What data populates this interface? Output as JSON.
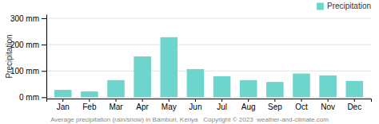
{
  "chart_data": {
    "type": "bar",
    "categories": [
      "Jan",
      "Feb",
      "Mar",
      "Apr",
      "May",
      "Jun",
      "Jul",
      "Aug",
      "Sep",
      "Oct",
      "Nov",
      "Dec"
    ],
    "series": [
      {
        "name": "Precipitation",
        "color": "#6dd5cb",
        "values": [
          28,
          22,
          65,
          155,
          228,
          107,
          80,
          65,
          58,
          90,
          83,
          62
        ]
      }
    ],
    "ylabel": "Precipitation",
    "ylim": [
      -5,
      315
    ],
    "yticks": [
      {
        "value": 0,
        "label": "0 mm"
      },
      {
        "value": 100,
        "label": "100 mm"
      },
      {
        "value": 200,
        "label": "200 mm"
      },
      {
        "value": 300,
        "label": "300 mm"
      }
    ],
    "grid": true,
    "legend": "upper right",
    "caption": "Average precipitation (rain/snow) in Bamburi, Kenya   Copyright © 2023  weather-and-climate.com"
  }
}
